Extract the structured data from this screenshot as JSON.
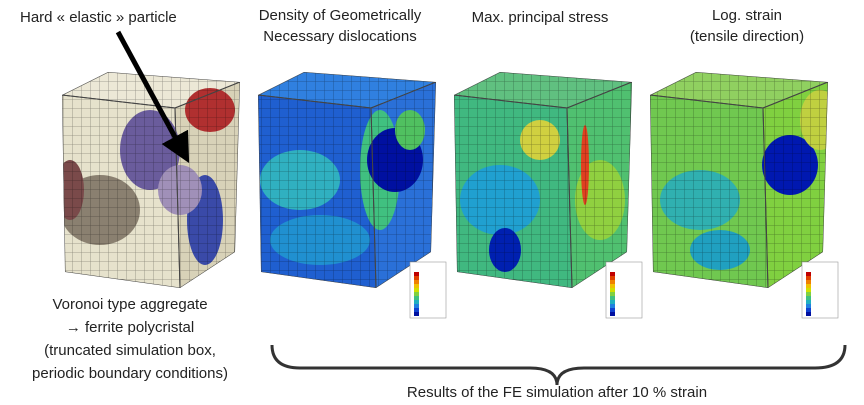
{
  "labels": {
    "particle": "Hard « elastic » particle",
    "gnd": [
      "Density of Geometrically",
      "Necessary dislocations"
    ],
    "stress": "Max. principal stress",
    "strain": [
      "Log. strain",
      "(tensile direction)"
    ],
    "aggregate": [
      "Voronoi type aggregate",
      "→ ferrite polycristal",
      "(truncated simulation box,",
      "periodic boundary conditions)"
    ],
    "results": "Results of the FE simulation after 10 % strain"
  }
}
